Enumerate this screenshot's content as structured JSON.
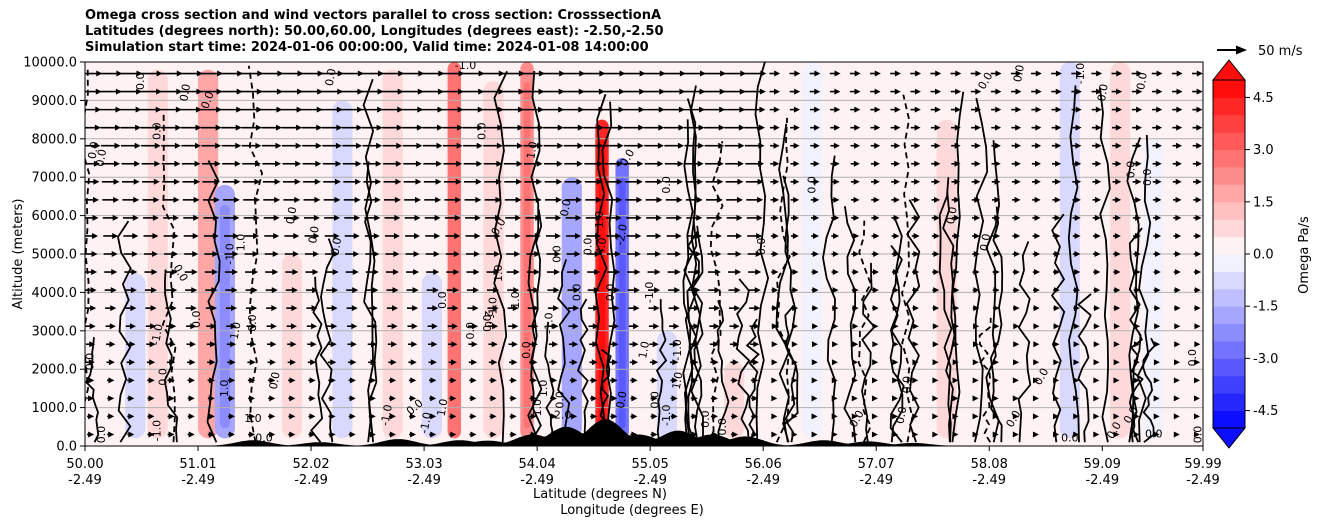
{
  "chart_data": {
    "type": "contour",
    "title_lines": [
      "Omega cross section and wind vectors parallel to cross section: CrosssectionA",
      "Latitudes (degrees north): 50.00,60.00, Longitudes (degrees east): -2.50,-2.50",
      "Simulation start time: 2024-01-06 00:00:00, Valid time: 2024-01-08 14:00:00"
    ],
    "ylabel": "Altitude (meters)",
    "xlabel_lat": "Latitude (degrees N)",
    "xlabel_lon": "Longitude (degrees E)",
    "xlim": [
      50.0,
      59.99
    ],
    "ylim": [
      0,
      10000
    ],
    "x_ticks": [
      {
        "lat": "50.00",
        "lon": "-2.49",
        "value": 50.0
      },
      {
        "lat": "51.01",
        "lon": "-2.49",
        "value": 51.01
      },
      {
        "lat": "52.02",
        "lon": "-2.49",
        "value": 52.02
      },
      {
        "lat": "53.03",
        "lon": "-2.49",
        "value": 53.03
      },
      {
        "lat": "54.04",
        "lon": "-2.49",
        "value": 54.04
      },
      {
        "lat": "55.05",
        "lon": "-2.49",
        "value": 55.05
      },
      {
        "lat": "56.06",
        "lon": "-2.49",
        "value": 56.06
      },
      {
        "lat": "57.07",
        "lon": "-2.49",
        "value": 57.07
      },
      {
        "lat": "58.08",
        "lon": "-2.49",
        "value": 58.08
      },
      {
        "lat": "59.09",
        "lon": "-2.49",
        "value": 59.09
      },
      {
        "lat": "59.99",
        "lon": "-2.49",
        "value": 59.99
      }
    ],
    "y_ticks": [
      "0.0",
      "1000.0",
      "2000.0",
      "3000.0",
      "4000.0",
      "5000.0",
      "6000.0",
      "7000.0",
      "8000.0",
      "9000.0",
      "10000.0"
    ],
    "y_tick_values": [
      0,
      1000,
      2000,
      3000,
      4000,
      5000,
      6000,
      7000,
      8000,
      9000,
      10000
    ],
    "colorbar": {
      "label": "Omega Pa/s",
      "vmin": -5.0,
      "vmax": 5.0,
      "ticks": [
        "-4.5",
        "-3.0",
        "-1.5",
        "0.0",
        "1.5",
        "3.0",
        "4.5"
      ],
      "tick_values": [
        -4.5,
        -3.0,
        -1.5,
        0.0,
        1.5,
        3.0,
        4.5
      ]
    },
    "quiver_key": {
      "label": "50 m/s",
      "value": 50
    },
    "omega_features": [
      {
        "lat": 50.45,
        "alt_top": 4500,
        "omega": -0.6
      },
      {
        "lat": 50.65,
        "alt_top": 9800,
        "omega": 0.5
      },
      {
        "lat": 51.1,
        "alt_top": 9800,
        "omega": 1.6
      },
      {
        "lat": 51.25,
        "alt_top": 6800,
        "omega": -1.8
      },
      {
        "lat": 51.85,
        "alt_top": 5000,
        "omega": 0.7
      },
      {
        "lat": 52.3,
        "alt_top": 9000,
        "omega": -1.0
      },
      {
        "lat": 52.75,
        "alt_top": 9800,
        "omega": 0.8
      },
      {
        "lat": 53.1,
        "alt_top": 4500,
        "omega": -0.9
      },
      {
        "lat": 53.3,
        "alt_top": 10000,
        "omega": 2.6
      },
      {
        "lat": 53.65,
        "alt_top": 9500,
        "omega": 0.9
      },
      {
        "lat": 53.95,
        "alt_top": 10000,
        "omega": 2.2
      },
      {
        "lat": 54.35,
        "alt_top": 7000,
        "omega": -1.6
      },
      {
        "lat": 54.62,
        "alt_top": 8500,
        "omega": 4.4
      },
      {
        "lat": 54.8,
        "alt_top": 7500,
        "omega": -2.8
      },
      {
        "lat": 55.2,
        "alt_top": 3000,
        "omega": -0.6
      },
      {
        "lat": 55.8,
        "alt_top": 2200,
        "omega": 0.5
      },
      {
        "lat": 56.5,
        "alt_top": 10000,
        "omega": -0.4
      },
      {
        "lat": 57.7,
        "alt_top": 8500,
        "omega": 0.5
      },
      {
        "lat": 58.8,
        "alt_top": 10000,
        "omega": -0.7
      },
      {
        "lat": 59.25,
        "alt_top": 10000,
        "omega": 0.9
      },
      {
        "lat": 59.55,
        "alt_top": 8000,
        "omega": -0.5
      }
    ],
    "contour_labels": [
      {
        "text": "0.0",
        "lat": 50.5,
        "alt": 9500,
        "rot": -90
      },
      {
        "text": "0.0",
        "lat": 50.9,
        "alt": 9200,
        "rot": -80
      },
      {
        "text": "0.0",
        "lat": 51.1,
        "alt": 9000,
        "rot": -70
      },
      {
        "text": "0.0",
        "lat": 50.08,
        "alt": 7700,
        "rot": -80
      },
      {
        "text": "0.0",
        "lat": 50.15,
        "alt": 7500,
        "rot": -80
      },
      {
        "text": "0.0",
        "lat": 50.65,
        "alt": 8200,
        "rot": -90
      },
      {
        "text": "0.0",
        "lat": 50.85,
        "alt": 4500,
        "rot": 60
      },
      {
        "text": "-1.0",
        "lat": 50.65,
        "alt": 2900,
        "rot": -80
      },
      {
        "text": "0.0",
        "lat": 50.05,
        "alt": 2200,
        "rot": -90
      },
      {
        "text": "0.0",
        "lat": 50.7,
        "alt": 1800,
        "rot": -90
      },
      {
        "text": "0.0",
        "lat": 50.15,
        "alt": 300,
        "rot": -90
      },
      {
        "text": "-1.0",
        "lat": 50.65,
        "alt": 400,
        "rot": -90
      },
      {
        "text": "0.0",
        "lat": 51.0,
        "alt": 3300,
        "rot": -90
      },
      {
        "text": "-1.0",
        "lat": 51.3,
        "alt": 5000,
        "rot": -90
      },
      {
        "text": "1.0",
        "lat": 51.35,
        "alt": 3000,
        "rot": -80
      },
      {
        "text": "1.0",
        "lat": 51.4,
        "alt": 5300,
        "rot": -90
      },
      {
        "text": "0.0",
        "lat": 51.5,
        "alt": 3200,
        "rot": -90
      },
      {
        "text": "1.0",
        "lat": 51.25,
        "alt": 1500,
        "rot": -90
      },
      {
        "text": "1.0",
        "lat": 51.5,
        "alt": 700,
        "rot": 0
      },
      {
        "text": "0.0",
        "lat": 51.6,
        "alt": 200,
        "rot": 0
      },
      {
        "text": "0.0",
        "lat": 51.7,
        "alt": 1700,
        "rot": -80
      },
      {
        "text": "0.0",
        "lat": 51.85,
        "alt": 6000,
        "rot": -80
      },
      {
        "text": "0.0",
        "lat": 52.05,
        "alt": 5500,
        "rot": -80
      },
      {
        "text": "0.0",
        "lat": 52.25,
        "alt": 5200,
        "rot": -80
      },
      {
        "text": "0.0",
        "lat": 52.2,
        "alt": 9600,
        "rot": -80
      },
      {
        "text": "-1.0",
        "lat": 52.7,
        "alt": 800,
        "rot": -80
      },
      {
        "text": "0.0",
        "lat": 52.95,
        "alt": 1000,
        "rot": -40
      },
      {
        "text": "1.0",
        "lat": 53.2,
        "alt": 1000,
        "rot": -80
      },
      {
        "text": "-1.0",
        "lat": 53.05,
        "alt": 600,
        "rot": -80
      },
      {
        "text": "-1.0",
        "lat": 53.4,
        "alt": 9900,
        "rot": 0
      },
      {
        "text": "0.0",
        "lat": 53.6,
        "alt": 3200,
        "rot": -90
      },
      {
        "text": "-1.0",
        "lat": 53.65,
        "alt": 3600,
        "rot": -90
      },
      {
        "text": "2.0",
        "lat": 53.6,
        "alt": 3300,
        "rot": 90
      },
      {
        "text": "1.0",
        "lat": 53.7,
        "alt": 4500,
        "rot": -90
      },
      {
        "text": "1.0",
        "lat": 53.85,
        "alt": 3800,
        "rot": -90
      },
      {
        "text": "0.0",
        "lat": 53.45,
        "alt": 3000,
        "rot": -90
      },
      {
        "text": "0.0",
        "lat": 53.7,
        "alt": 5700,
        "rot": -60
      },
      {
        "text": "0.0",
        "lat": 53.2,
        "alt": 3800,
        "rot": -90
      },
      {
        "text": "0.0",
        "lat": 53.55,
        "alt": 8200,
        "rot": -90
      },
      {
        "text": "1.0",
        "lat": 54.0,
        "alt": 7700,
        "rot": -80
      },
      {
        "text": "0.0",
        "lat": 54.3,
        "alt": 6200,
        "rot": -80
      },
      {
        "text": "0.0",
        "lat": 54.22,
        "alt": 5000,
        "rot": -90
      },
      {
        "text": "0.0",
        "lat": 53.95,
        "alt": 2500,
        "rot": -90
      },
      {
        "text": "-1.0",
        "lat": 54.15,
        "alt": 3200,
        "rot": -90
      },
      {
        "text": "1.0",
        "lat": 54.1,
        "alt": 1500,
        "rot": -90
      },
      {
        "text": "1.0",
        "lat": 54.05,
        "alt": 1000,
        "rot": -90
      },
      {
        "text": "-2.0",
        "lat": 54.25,
        "alt": 800,
        "rot": 0
      },
      {
        "text": "0.0",
        "lat": 54.25,
        "alt": 1200,
        "rot": -90
      },
      {
        "text": "0.0",
        "lat": 54.4,
        "alt": 4000,
        "rot": -90
      },
      {
        "text": "1.0",
        "lat": 54.6,
        "alt": 5900,
        "rot": -90
      },
      {
        "text": "0.0",
        "lat": 54.5,
        "alt": 5200,
        "rot": -90
      },
      {
        "text": "4.0",
        "lat": 54.62,
        "alt": 5200,
        "rot": -80
      },
      {
        "text": "-2.0",
        "lat": 54.8,
        "alt": 5500,
        "rot": -80
      },
      {
        "text": "0.0",
        "lat": 54.7,
        "alt": 4000,
        "rot": -90
      },
      {
        "text": "0.0",
        "lat": 54.85,
        "alt": 7500,
        "rot": -60
      },
      {
        "text": "0.0",
        "lat": 55.2,
        "alt": 6800,
        "rot": -90
      },
      {
        "text": "-1.0",
        "lat": 55.05,
        "alt": 4000,
        "rot": -90
      },
      {
        "text": "1.0",
        "lat": 55.0,
        "alt": 2500,
        "rot": -80
      },
      {
        "text": "-1.0",
        "lat": 55.3,
        "alt": 2500,
        "rot": -90
      },
      {
        "text": "1.0",
        "lat": 55.3,
        "alt": 1700,
        "rot": -80
      },
      {
        "text": "0.0",
        "lat": 54.8,
        "alt": 1200,
        "rot": -80
      },
      {
        "text": "0.0",
        "lat": 55.1,
        "alt": 1200,
        "rot": -90
      },
      {
        "text": "-1.0",
        "lat": 55.2,
        "alt": 800,
        "rot": -90
      },
      {
        "text": "0.0",
        "lat": 55.55,
        "alt": 700,
        "rot": -90
      },
      {
        "text": "0.0",
        "lat": 55.7,
        "alt": 500,
        "rot": -90
      },
      {
        "text": "0.0",
        "lat": 56.05,
        "alt": 5200,
        "rot": -90
      },
      {
        "text": "0.0",
        "lat": 56.5,
        "alt": 6800,
        "rot": -90
      },
      {
        "text": "0.0",
        "lat": 56.9,
        "alt": 700,
        "rot": -60
      },
      {
        "text": "0.0",
        "lat": 57.3,
        "alt": 800,
        "rot": -80
      },
      {
        "text": "0.0",
        "lat": 57.35,
        "alt": 1600,
        "rot": -90
      },
      {
        "text": "0.0",
        "lat": 57.75,
        "alt": 6000,
        "rot": -80
      },
      {
        "text": "0.0",
        "lat": 58.05,
        "alt": 5300,
        "rot": -80
      },
      {
        "text": "0.0",
        "lat": 58.55,
        "alt": 1800,
        "rot": -60
      },
      {
        "text": "0.0",
        "lat": 58.3,
        "alt": 700,
        "rot": -60
      },
      {
        "text": "0.0",
        "lat": 58.8,
        "alt": 200,
        "rot": 0
      },
      {
        "text": "0.0",
        "lat": 58.05,
        "alt": 9500,
        "rot": -60
      },
      {
        "text": "0.0",
        "lat": 58.35,
        "alt": 9700,
        "rot": -80
      },
      {
        "text": "-1.0",
        "lat": 58.9,
        "alt": 9700,
        "rot": -90
      },
      {
        "text": "0.0",
        "lat": 59.1,
        "alt": 9200,
        "rot": -80
      },
      {
        "text": "0.0",
        "lat": 59.45,
        "alt": 9500,
        "rot": -80
      },
      {
        "text": "0.0",
        "lat": 59.35,
        "alt": 7200,
        "rot": -90
      },
      {
        "text": "0.0",
        "lat": 59.5,
        "alt": 7000,
        "rot": -90
      },
      {
        "text": "0.0",
        "lat": 59.9,
        "alt": 2300,
        "rot": -90
      },
      {
        "text": "0.0",
        "lat": 59.55,
        "alt": 300,
        "rot": 0
      },
      {
        "text": "0.0",
        "lat": 59.95,
        "alt": 300,
        "rot": -90
      },
      {
        "text": "0.0",
        "lat": 59.35,
        "alt": 800,
        "rot": -60
      },
      {
        "text": "0.0",
        "lat": 59.2,
        "alt": 400,
        "rot": -60
      }
    ],
    "terrain_peaks": [
      {
        "lat": 51.5,
        "height": 150
      },
      {
        "lat": 52.1,
        "height": 100
      },
      {
        "lat": 52.8,
        "height": 180
      },
      {
        "lat": 53.35,
        "height": 150
      },
      {
        "lat": 53.6,
        "height": 140
      },
      {
        "lat": 54.0,
        "height": 300
      },
      {
        "lat": 54.3,
        "height": 500
      },
      {
        "lat": 54.65,
        "height": 700
      },
      {
        "lat": 54.95,
        "height": 300
      },
      {
        "lat": 55.3,
        "height": 400
      },
      {
        "lat": 55.6,
        "height": 300
      },
      {
        "lat": 55.9,
        "height": 250
      },
      {
        "lat": 56.6,
        "height": 150
      },
      {
        "lat": 57.0,
        "height": 120
      },
      {
        "lat": 57.4,
        "height": 80
      }
    ]
  }
}
